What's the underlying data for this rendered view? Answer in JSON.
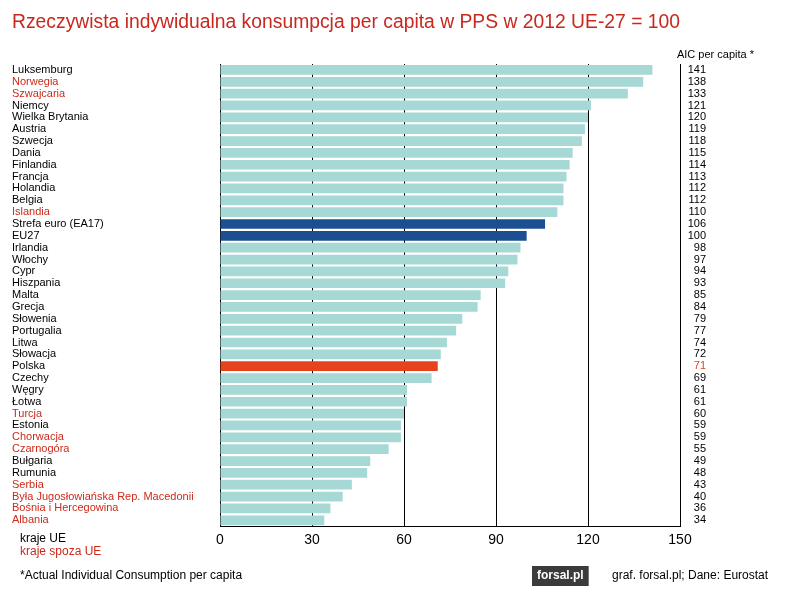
{
  "chart_data": {
    "type": "bar",
    "orientation": "horizontal",
    "title": "Rzeczywista indywidualna konsumpcja per capita w PPS w 2012 UE-27 = 100",
    "categories": [
      "Luksemburg",
      "Norwegia",
      "Szwajcaria",
      "Niemcy",
      "Wielka Brytania",
      "Austria",
      "Szwecja",
      "Dania",
      "Finlandia",
      "Francja",
      "Holandia",
      "Belgia",
      "Islandia",
      "Strefa euro (EA17)",
      "EU27",
      "Irlandia",
      "Włochy",
      "Cypr",
      "Hiszpania",
      "Malta",
      "Grecja",
      "Słowenia",
      "Portugalia",
      "Litwa",
      "Słowacja",
      "Polska",
      "Czechy",
      "Węgry",
      "Łotwa",
      "Turcja",
      "Estonia",
      "Chorwacja",
      "Czarnogóra",
      "Bułgaria",
      "Rumunia",
      "Serbia",
      "Była Jugosłowiańska Rep. Macedonii",
      "Bośnia i Hercegowina",
      "Albania"
    ],
    "series": [
      {
        "name": "kraje UE",
        "color": "#000000",
        "values": [
          141,
          null,
          null,
          121,
          120,
          119,
          118,
          115,
          114,
          113,
          112,
          112,
          null,
          106,
          100,
          98,
          97,
          94,
          93,
          85,
          84,
          79,
          77,
          74,
          72,
          71,
          69,
          61,
          61,
          null,
          59,
          null,
          null,
          49,
          48,
          null,
          null,
          null,
          null
        ]
      },
      {
        "name": "kraje spoza UE",
        "color": "#cc2a1a",
        "values": [
          null,
          138,
          133,
          null,
          null,
          null,
          null,
          null,
          null,
          null,
          null,
          null,
          110,
          null,
          null,
          null,
          null,
          null,
          null,
          null,
          null,
          null,
          null,
          null,
          null,
          null,
          null,
          null,
          null,
          60,
          null,
          59,
          55,
          null,
          null,
          43,
          40,
          36,
          34
        ]
      }
    ],
    "colors": [
      "#a6d9d5",
      "#a6d9d5",
      "#a6d9d5",
      "#a6d9d5",
      "#a6d9d5",
      "#a6d9d5",
      "#a6d9d5",
      "#a6d9d5",
      "#a6d9d5",
      "#a6d9d5",
      "#a6d9d5",
      "#a6d9d5",
      "#a6d9d5",
      "#1c4f91",
      "#1c4f91",
      "#a6d9d5",
      "#a6d9d5",
      "#a6d9d5",
      "#a6d9d5",
      "#a6d9d5",
      "#a6d9d5",
      "#a6d9d5",
      "#a6d9d5",
      "#a6d9d5",
      "#a6d9d5",
      "#e4431d",
      "#a6d9d5",
      "#a6d9d5",
      "#a6d9d5",
      "#a6d9d5",
      "#a6d9d5",
      "#a6d9d5",
      "#a6d9d5",
      "#a6d9d5",
      "#a6d9d5",
      "#a6d9d5",
      "#a6d9d5",
      "#a6d9d5",
      "#a6d9d5"
    ],
    "stacked": true,
    "data_labels": true,
    "xlim": [
      0,
      150
    ],
    "xticks": [
      0,
      30,
      60,
      90,
      120,
      150
    ],
    "grid": true,
    "annotations": {
      "column_header": "AIC per capita *",
      "footnote": "*Actual Individual Consumption per capita",
      "logo": "forsal.pl",
      "source": "graf. forsal.pl; Dane: Eurostat"
    }
  }
}
